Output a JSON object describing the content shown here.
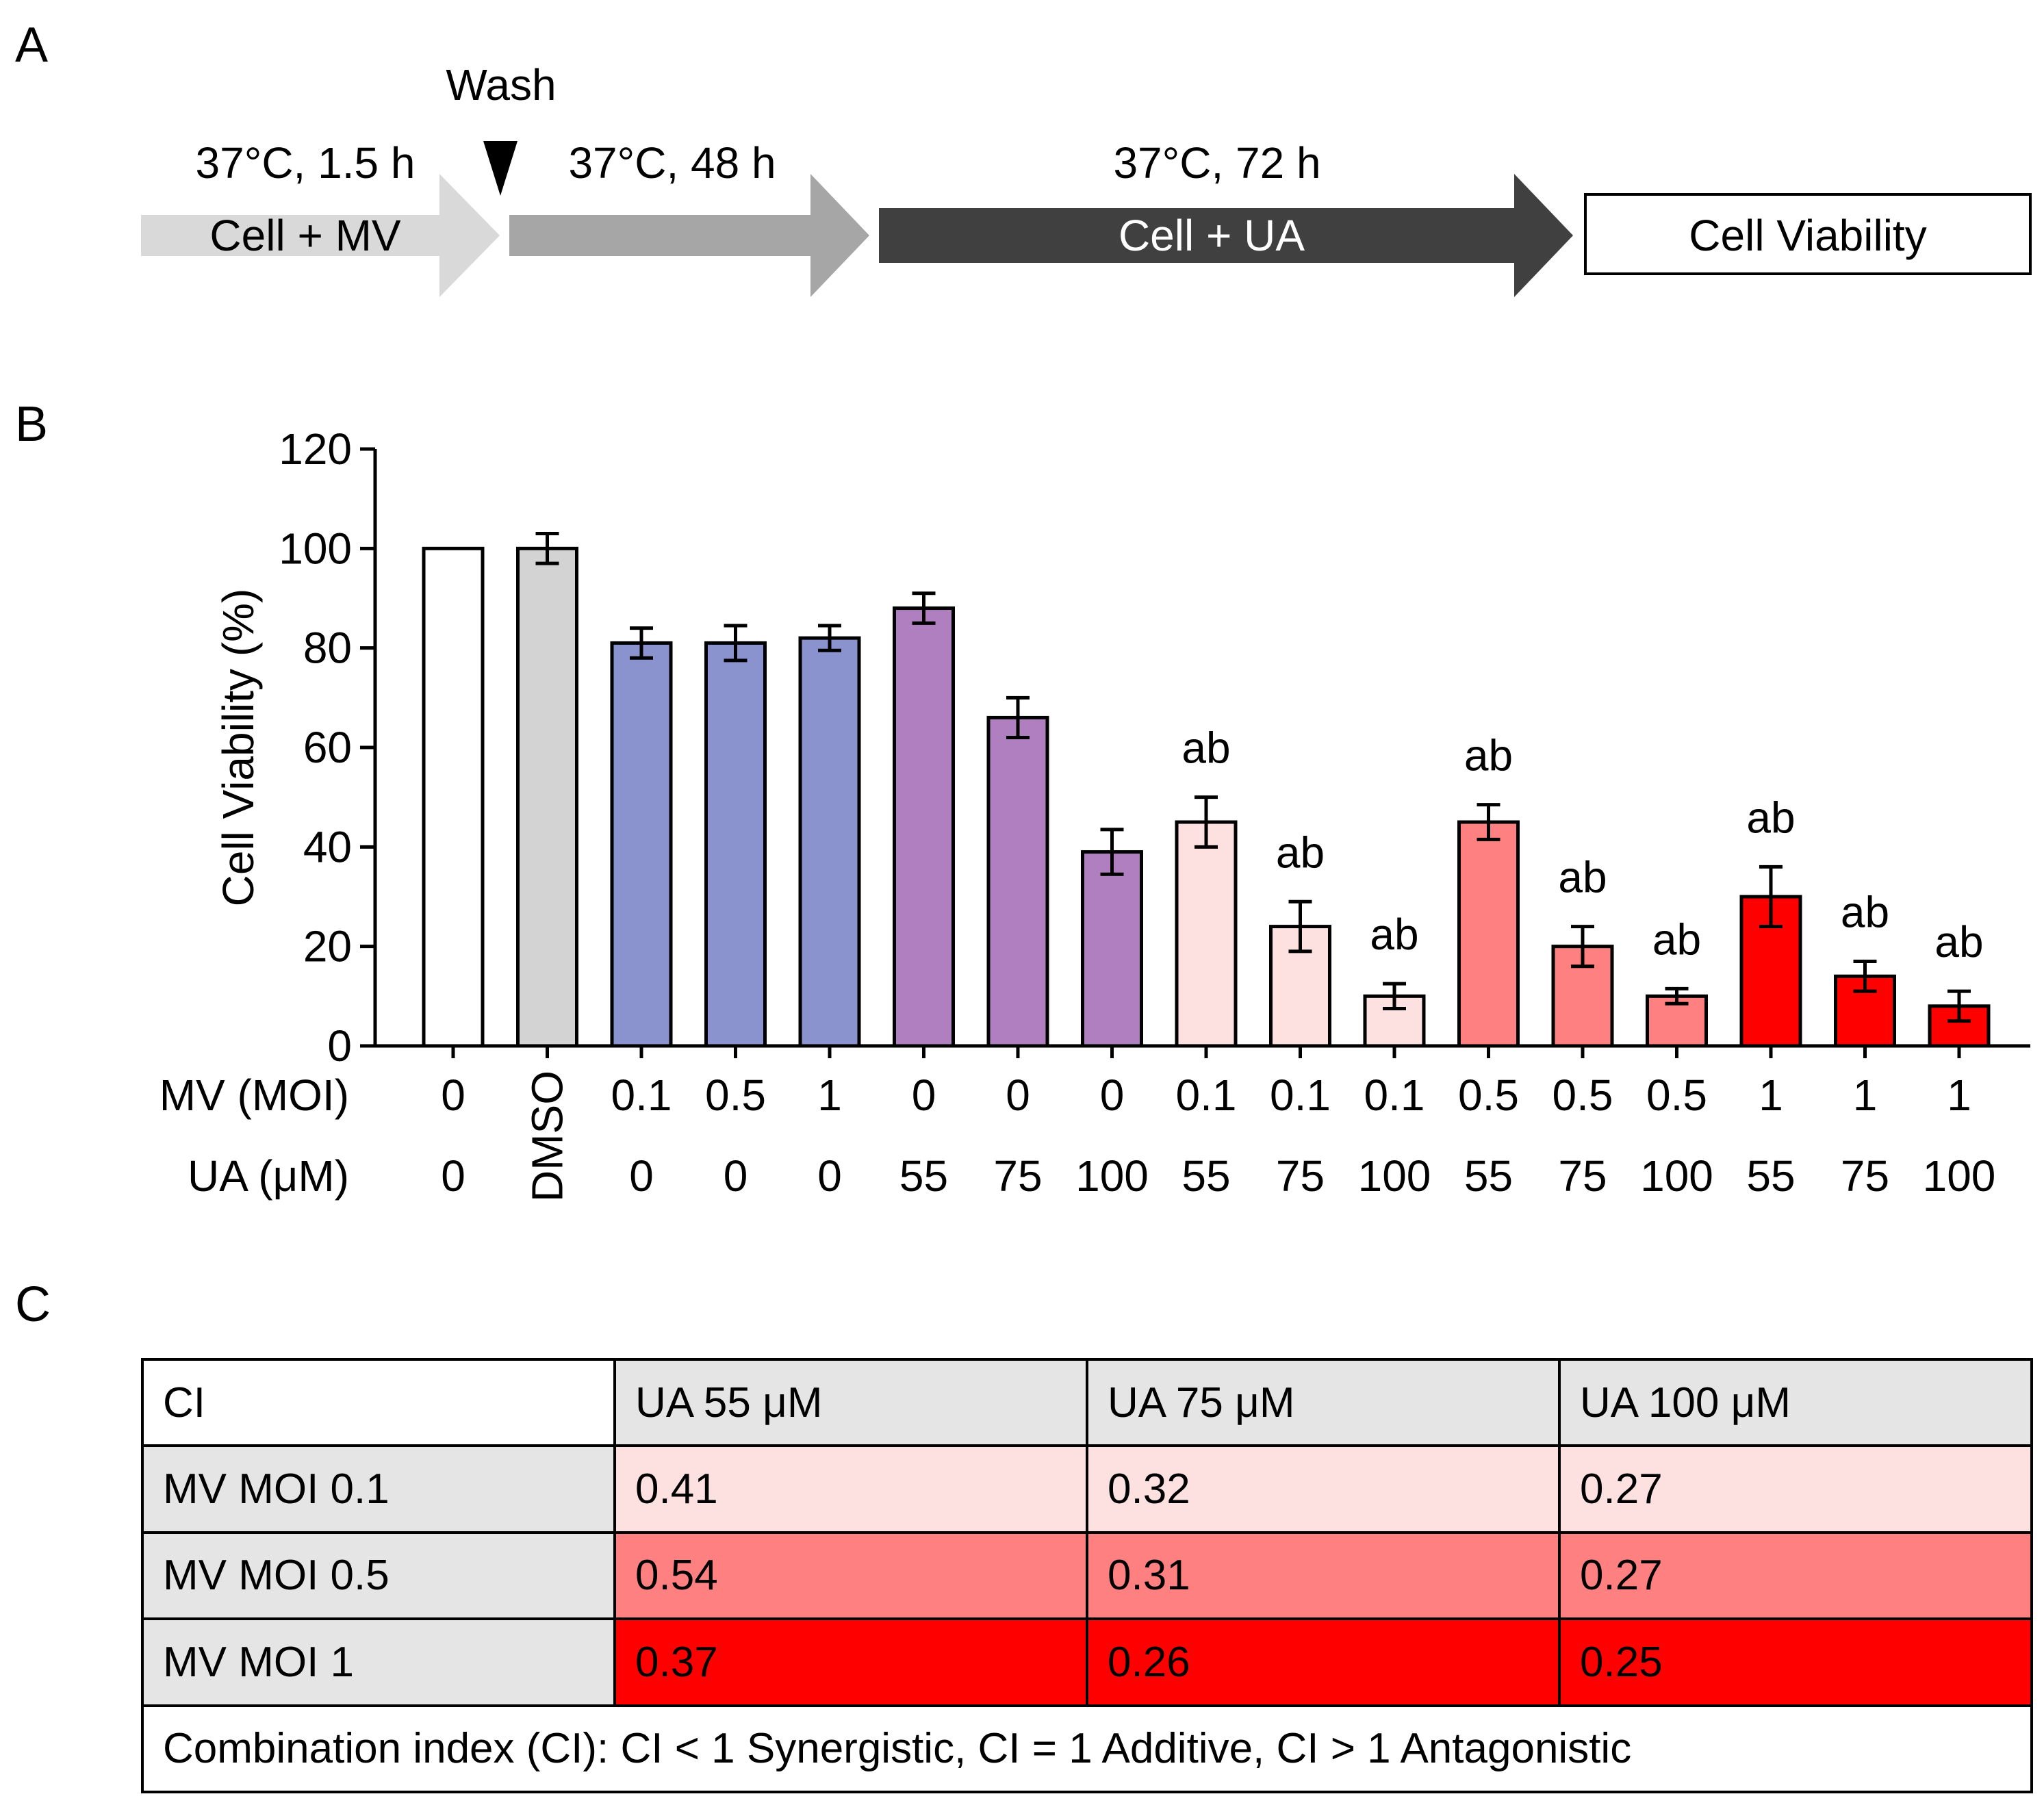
{
  "panels": {
    "a": "A",
    "b": "B",
    "c": "C"
  },
  "schematic": {
    "wash_label": "Wash",
    "step1_time": "37°C, 1.5 h",
    "step1_label": "Cell + MV",
    "step2_time": "37°C, 48 h",
    "step3_time": "37°C, 72 h",
    "step3_label": "Cell + UA",
    "readout_label": "Cell Viability",
    "colors": {
      "step1": "#d9d9d9",
      "step2": "#a6a6a6",
      "step3": "#404040"
    }
  },
  "chart_data": {
    "type": "bar",
    "ylabel": "Cell Viability (%)",
    "ylim": [
      0,
      120
    ],
    "yticks": [
      0,
      20,
      40,
      60,
      80,
      100,
      120
    ],
    "row_labels": {
      "mv": "MV (MOI)",
      "ua": "UA (μM)"
    },
    "categories_mv": [
      "0",
      "DMSO",
      "0.1",
      "0.5",
      "1",
      "0",
      "0",
      "0",
      "0.1",
      "0.1",
      "0.1",
      "0.5",
      "0.5",
      "0.5",
      "1",
      "1",
      "1"
    ],
    "categories_ua": [
      "0",
      "",
      "0",
      "0",
      "0",
      "55",
      "75",
      "100",
      "55",
      "75",
      "100",
      "55",
      "75",
      "100",
      "55",
      "75",
      "100"
    ],
    "values": [
      100,
      100,
      81,
      81,
      82,
      88,
      66,
      39,
      45,
      24,
      10,
      45,
      20,
      10,
      30,
      14,
      8
    ],
    "errors": [
      0,
      3,
      3,
      3.5,
      2.5,
      3,
      4,
      4.5,
      5,
      5,
      2.5,
      3.5,
      4,
      1.5,
      6,
      3,
      3
    ],
    "annotations": [
      "",
      "",
      "",
      "",
      "",
      "",
      "",
      "",
      "ab",
      "ab",
      "ab",
      "ab",
      "ab",
      "ab",
      "ab",
      "ab",
      "ab"
    ],
    "colors": [
      "#ffffff",
      "#d3d3d3",
      "#8b93cf",
      "#8b93cf",
      "#8b93cf",
      "#b07fbf",
      "#b07fbf",
      "#b07fbf",
      "#fde0e0",
      "#fde0e0",
      "#fde0e0",
      "#ff8080",
      "#ff8080",
      "#ff8080",
      "#ff0000",
      "#ff0000",
      "#ff0000"
    ]
  },
  "ci_table": {
    "header": [
      "CI",
      "UA 55 μM",
      "UA 75 μM",
      "UA 100 μM"
    ],
    "rows": [
      {
        "label": "MV MOI 0.1",
        "values": [
          "0.41",
          "0.32",
          "0.27"
        ],
        "color": "#fde0e0"
      },
      {
        "label": "MV MOI 0.5",
        "values": [
          "0.54",
          "0.31",
          "0.27"
        ],
        "color": "#ff8080"
      },
      {
        "label": "MV MOI 1",
        "values": [
          "0.37",
          "0.26",
          "0.25"
        ],
        "color": "#ff0000"
      }
    ],
    "footer": "Combination index (CI): CI < 1 Synergistic, CI = 1 Additive, CI > 1 Antagonistic",
    "header_color": "#e5e5e5"
  }
}
